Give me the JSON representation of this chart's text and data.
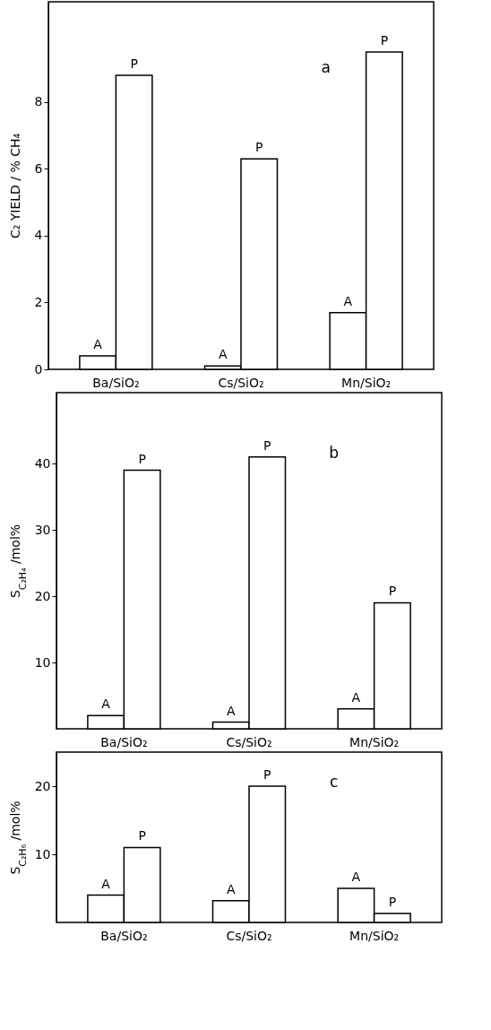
{
  "chart_data": [
    {
      "type": "bar",
      "ylabel": "C₂ YIELD / % CH₄",
      "categories": [
        "Ba/SiO₂",
        "Cs/SiO₂",
        "Mn/SiO₂"
      ],
      "series": [
        {
          "name": "A",
          "color": "#ffffff",
          "values": [
            0.4,
            0.1,
            1.7
          ]
        },
        {
          "name": "P",
          "color": "#ffffff",
          "values": [
            8.8,
            6.3,
            9.5
          ]
        }
      ],
      "ylim": [
        0,
        11
      ],
      "yticks": [
        0,
        2,
        4,
        6,
        8
      ],
      "annotations": [
        "a"
      ]
    },
    {
      "type": "bar",
      "ylabel": "S$_{C₂H₄}$ /mol%",
      "categories": [
        "Ba/SiO₂",
        "Cs/SiO₂",
        "Mn/SiO₂"
      ],
      "series": [
        {
          "name": "A",
          "color": "#ffffff",
          "values": [
            2,
            1,
            3
          ]
        },
        {
          "name": "P",
          "color": "#ffffff",
          "values": [
            39,
            41,
            19
          ]
        }
      ],
      "ylim": [
        0,
        50.7
      ],
      "yticks": [
        10,
        20,
        30,
        40
      ],
      "annotations": [
        "b"
      ]
    },
    {
      "type": "bar",
      "ylabel": "S$_{C₂H₆}$ /mol%",
      "categories": [
        "Ba/SiO₂",
        "Cs/SiO₂",
        "Mn/SiO₂"
      ],
      "series": [
        {
          "name": "A",
          "color": "#ffffff",
          "values": [
            4,
            3.2,
            5
          ]
        },
        {
          "name": "P",
          "color": "#ffffff",
          "values": [
            11,
            20,
            1.3
          ]
        }
      ],
      "ylim": [
        0,
        25
      ],
      "yticks": [
        10,
        20
      ],
      "annotations": [
        "c"
      ]
    }
  ]
}
